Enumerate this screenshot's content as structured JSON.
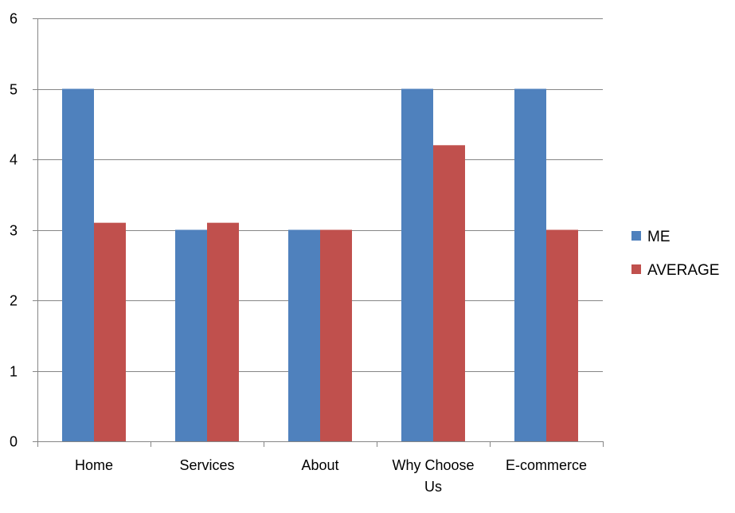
{
  "chart_data": {
    "type": "bar",
    "categories": [
      "Home",
      "Services",
      "About",
      "Why Choose Us",
      "E-commerce"
    ],
    "series": [
      {
        "name": "ME",
        "values": [
          5,
          3,
          3,
          5,
          5
        ],
        "color": "#4F81BD"
      },
      {
        "name": "AVERAGE",
        "values": [
          3.1,
          3.1,
          3,
          4.2,
          3
        ],
        "color": "#C0504D"
      }
    ],
    "ylim": [
      0,
      6
    ],
    "yticks": [
      0,
      1,
      2,
      3,
      4,
      5,
      6
    ],
    "grid": true,
    "legend_position": "right",
    "gridline_color": "#868686",
    "axis_color": "#868686"
  }
}
